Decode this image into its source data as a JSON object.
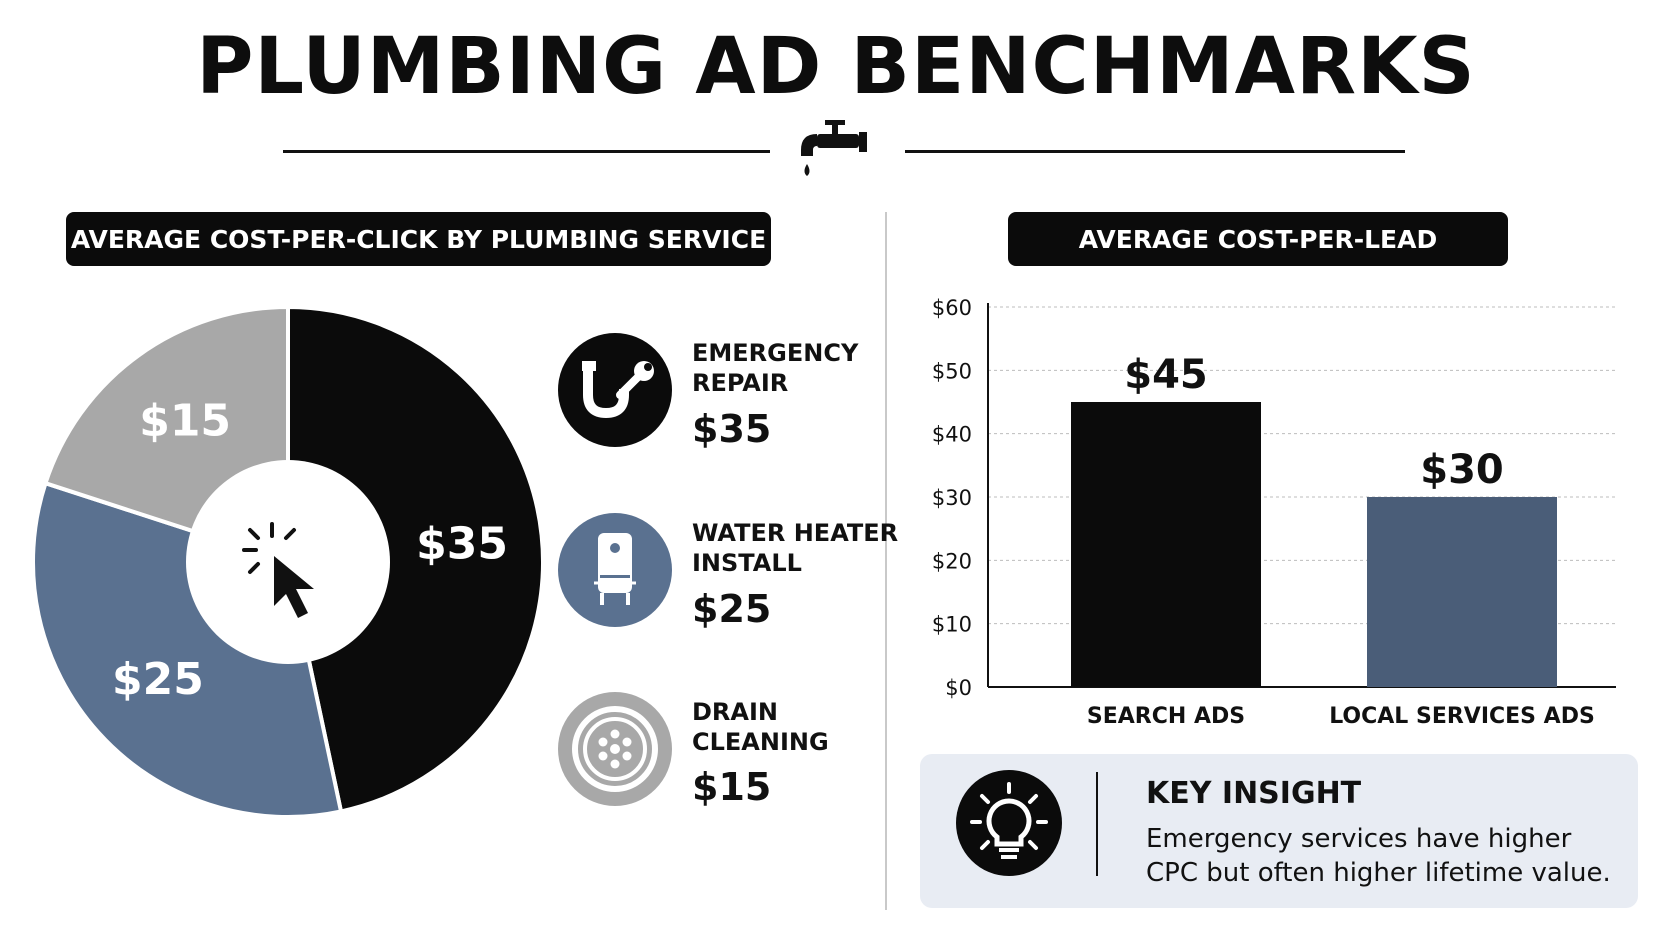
{
  "header": {
    "title": "PLUMBING AD BENCHMARKS",
    "icon": "faucet-icon"
  },
  "left_section": {
    "label": "AVERAGE COST-PER-CLICK BY PLUMBING SERVICE",
    "center_icon": "cursor-click-icon",
    "legend": [
      {
        "name_line1": "EMERGENCY",
        "name_line2": "REPAIR",
        "value": "$35",
        "icon": "pipe-wrench-icon",
        "color": "#0b0b0b"
      },
      {
        "name_line1": "WATER HEATER",
        "name_line2": "INSTALL",
        "value": "$25",
        "icon": "water-heater-icon",
        "color": "#5a7190"
      },
      {
        "name_line1": "DRAIN",
        "name_line2": "CLEANING",
        "value": "$15",
        "icon": "drain-icon",
        "color": "#a8a8a8"
      }
    ]
  },
  "right_section": {
    "label": "AVERAGE COST-PER-LEAD"
  },
  "chart_data": [
    {
      "type": "pie",
      "title": "AVERAGE COST-PER-CLICK BY PLUMBING SERVICE",
      "categories": [
        "Emergency Repair",
        "Water Heater Install",
        "Drain Cleaning"
      ],
      "values": [
        35,
        25,
        15
      ],
      "labels": [
        "$35",
        "$25",
        "$15"
      ],
      "colors": [
        "#0b0b0b",
        "#5a7190",
        "#a8a8a8"
      ],
      "donut": true
    },
    {
      "type": "bar",
      "title": "AVERAGE COST-PER-LEAD",
      "categories": [
        "SEARCH ADS",
        "LOCAL SERVICES ADS"
      ],
      "values": [
        45,
        30
      ],
      "value_labels": [
        "$45",
        "$30"
      ],
      "colors": [
        "#0b0b0b",
        "#4a5d78"
      ],
      "ylim": [
        0,
        60
      ],
      "yticks": [
        0,
        10,
        20,
        30,
        40,
        50,
        60
      ],
      "ytick_labels": [
        "$0",
        "$10",
        "$20",
        "$30",
        "$40",
        "$50",
        "$60"
      ],
      "grid": true
    }
  ],
  "insight": {
    "icon": "lightbulb-icon",
    "title": "KEY INSIGHT",
    "text": "Emergency services have higher CPC but often higher lifetime value."
  }
}
